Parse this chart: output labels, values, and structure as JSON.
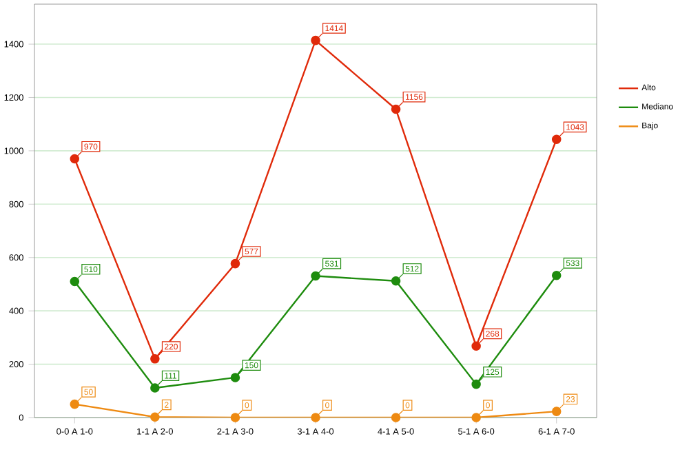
{
  "chart_data": {
    "type": "line",
    "categories": [
      "0-0 A 1-0",
      "1-1 A 2-0",
      "2-1 A 3-0",
      "3-1 A 4-0",
      "4-1 A 5-0",
      "5-1 A 6-0",
      "6-1 A 7-0"
    ],
    "series": [
      {
        "name": "Alto",
        "color": "#e02a0a",
        "values": [
          970,
          220,
          577,
          1414,
          1156,
          268,
          1043
        ]
      },
      {
        "name": "Mediano",
        "color": "#1e8c0e",
        "values": [
          510,
          111,
          150,
          531,
          512,
          125,
          533
        ]
      },
      {
        "name": "Bajo",
        "color": "#ee8a12",
        "values": [
          50,
          2,
          0,
          0,
          0,
          0,
          23
        ]
      }
    ],
    "ylim": [
      0,
      1550
    ],
    "yticks": [
      0,
      200,
      400,
      600,
      800,
      1000,
      1200,
      1400
    ],
    "grid": "y",
    "legend": "right",
    "marker": "circle",
    "line_style": "solid",
    "data_labels": true
  }
}
